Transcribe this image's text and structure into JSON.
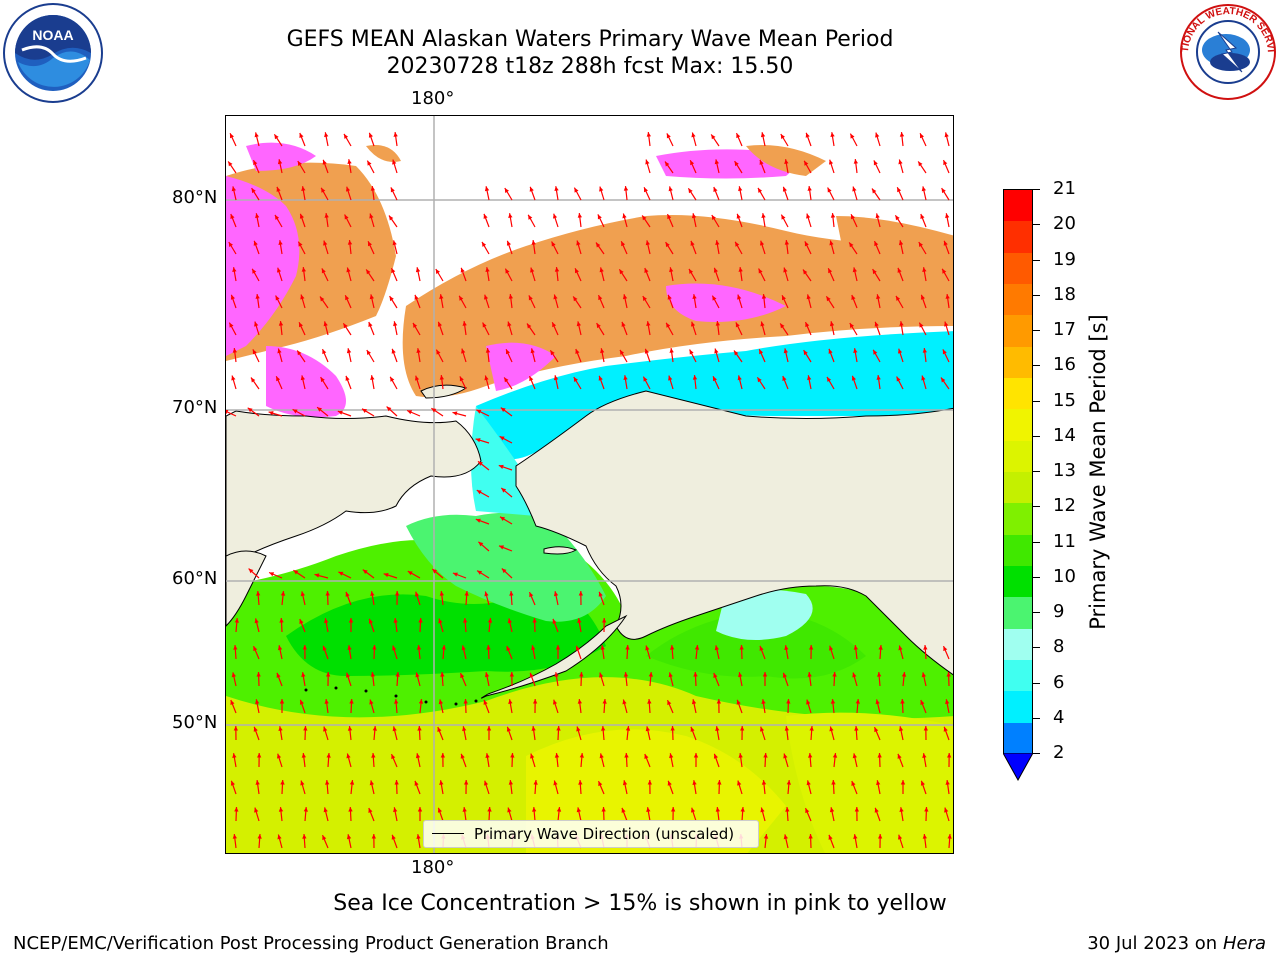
{
  "title": {
    "line1": "GEFS MEAN Alaskan Waters Primary Wave Mean Period",
    "line2": "20230728 t18z 288h fcst   Max: 15.50"
  },
  "logos": {
    "left": "NOAA",
    "right": "NATIONAL WEATHER SERVICE"
  },
  "axes": {
    "lon_top": "180°",
    "lon_bottom": "180°",
    "lat_labels": [
      "80°N",
      "70°N",
      "60°N",
      "50°N"
    ]
  },
  "legend": {
    "label": "Primary Wave Direction (unscaled)"
  },
  "colorbar": {
    "title": "Primary Wave Mean Period [s]",
    "ticks": [
      "21",
      "20",
      "19",
      "18",
      "17",
      "16",
      "15",
      "14",
      "13",
      "12",
      "11",
      "10",
      "9",
      "8",
      "6",
      "4",
      "2"
    ],
    "colors": [
      "#ff0000",
      "#ff2f00",
      "#ff5a00",
      "#ff7a00",
      "#ff9a00",
      "#ffbb00",
      "#ffe400",
      "#f0f400",
      "#dcf400",
      "#c4f000",
      "#7ff000",
      "#40e800",
      "#00e000",
      "#4bf470",
      "#a0fff0",
      "#40fff0",
      "#00f0ff",
      "#0080ff"
    ],
    "extend_color": "#0000ff"
  },
  "colors": {
    "land": "#efeede",
    "ice": "#ff66ff",
    "ice_orange": "#f0a050",
    "arrows": "#ff0000",
    "grid": "#b0b0b0"
  },
  "subtitle": "Sea Ice Concentration > 15% is shown in pink to yellow",
  "footer": {
    "left": "NCEP/EMC/Verification Post Processing Product Generation Branch",
    "right_date": "30 Jul 2023 on ",
    "right_host": "Hera"
  }
}
